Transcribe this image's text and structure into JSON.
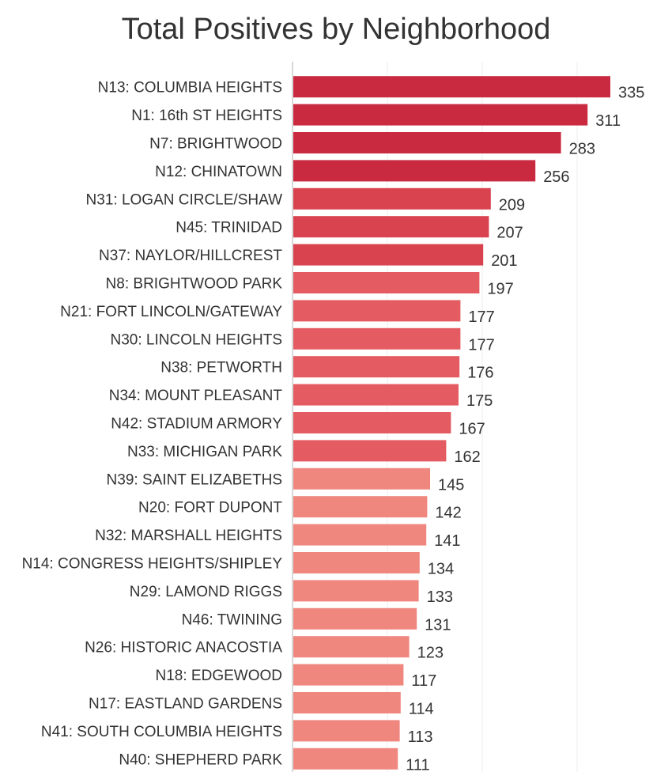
{
  "chart_data": {
    "type": "bar",
    "orientation": "horizontal",
    "title": "Total Positives by Neighborhood",
    "xlabel": "",
    "ylabel": "",
    "xlim": [
      0,
      350
    ],
    "grid": true,
    "categories": [
      "N13: COLUMBIA HEIGHTS",
      "N1: 16th ST HEIGHTS",
      "N7: BRIGHTWOOD",
      "N12: CHINATOWN",
      "N31: LOGAN CIRCLE/SHAW",
      "N45: TRINIDAD",
      "N37: NAYLOR/HILLCREST",
      "N8: BRIGHTWOOD PARK",
      "N21: FORT LINCOLN/GATEWAY",
      "N30: LINCOLN HEIGHTS",
      "N38: PETWORTH",
      "N34: MOUNT PLEASANT",
      "N42: STADIUM ARMORY",
      "N33: MICHIGAN PARK",
      "N39: SAINT ELIZABETHS",
      "N20: FORT DUPONT",
      "N32: MARSHALL HEIGHTS",
      "N14: CONGRESS HEIGHTS/SHIPLEY",
      "N29: LAMOND RIGGS",
      "N46: TWINING",
      "N26: HISTORIC ANACOSTIA",
      "N18: EDGEWOOD",
      "N17: EASTLAND GARDENS",
      "N41: SOUTH COLUMBIA HEIGHTS",
      "N40: SHEPHERD PARK"
    ],
    "values": [
      335,
      311,
      283,
      256,
      209,
      207,
      201,
      197,
      177,
      177,
      176,
      175,
      167,
      162,
      145,
      142,
      141,
      134,
      133,
      131,
      123,
      117,
      114,
      113,
      111
    ],
    "color_scale": [
      {
        "min": 250,
        "color": "#c92a40"
      },
      {
        "min": 200,
        "color": "#d9434f"
      },
      {
        "min": 150,
        "color": "#e45c61"
      },
      {
        "min": 0,
        "color": "#f0877f"
      }
    ]
  }
}
